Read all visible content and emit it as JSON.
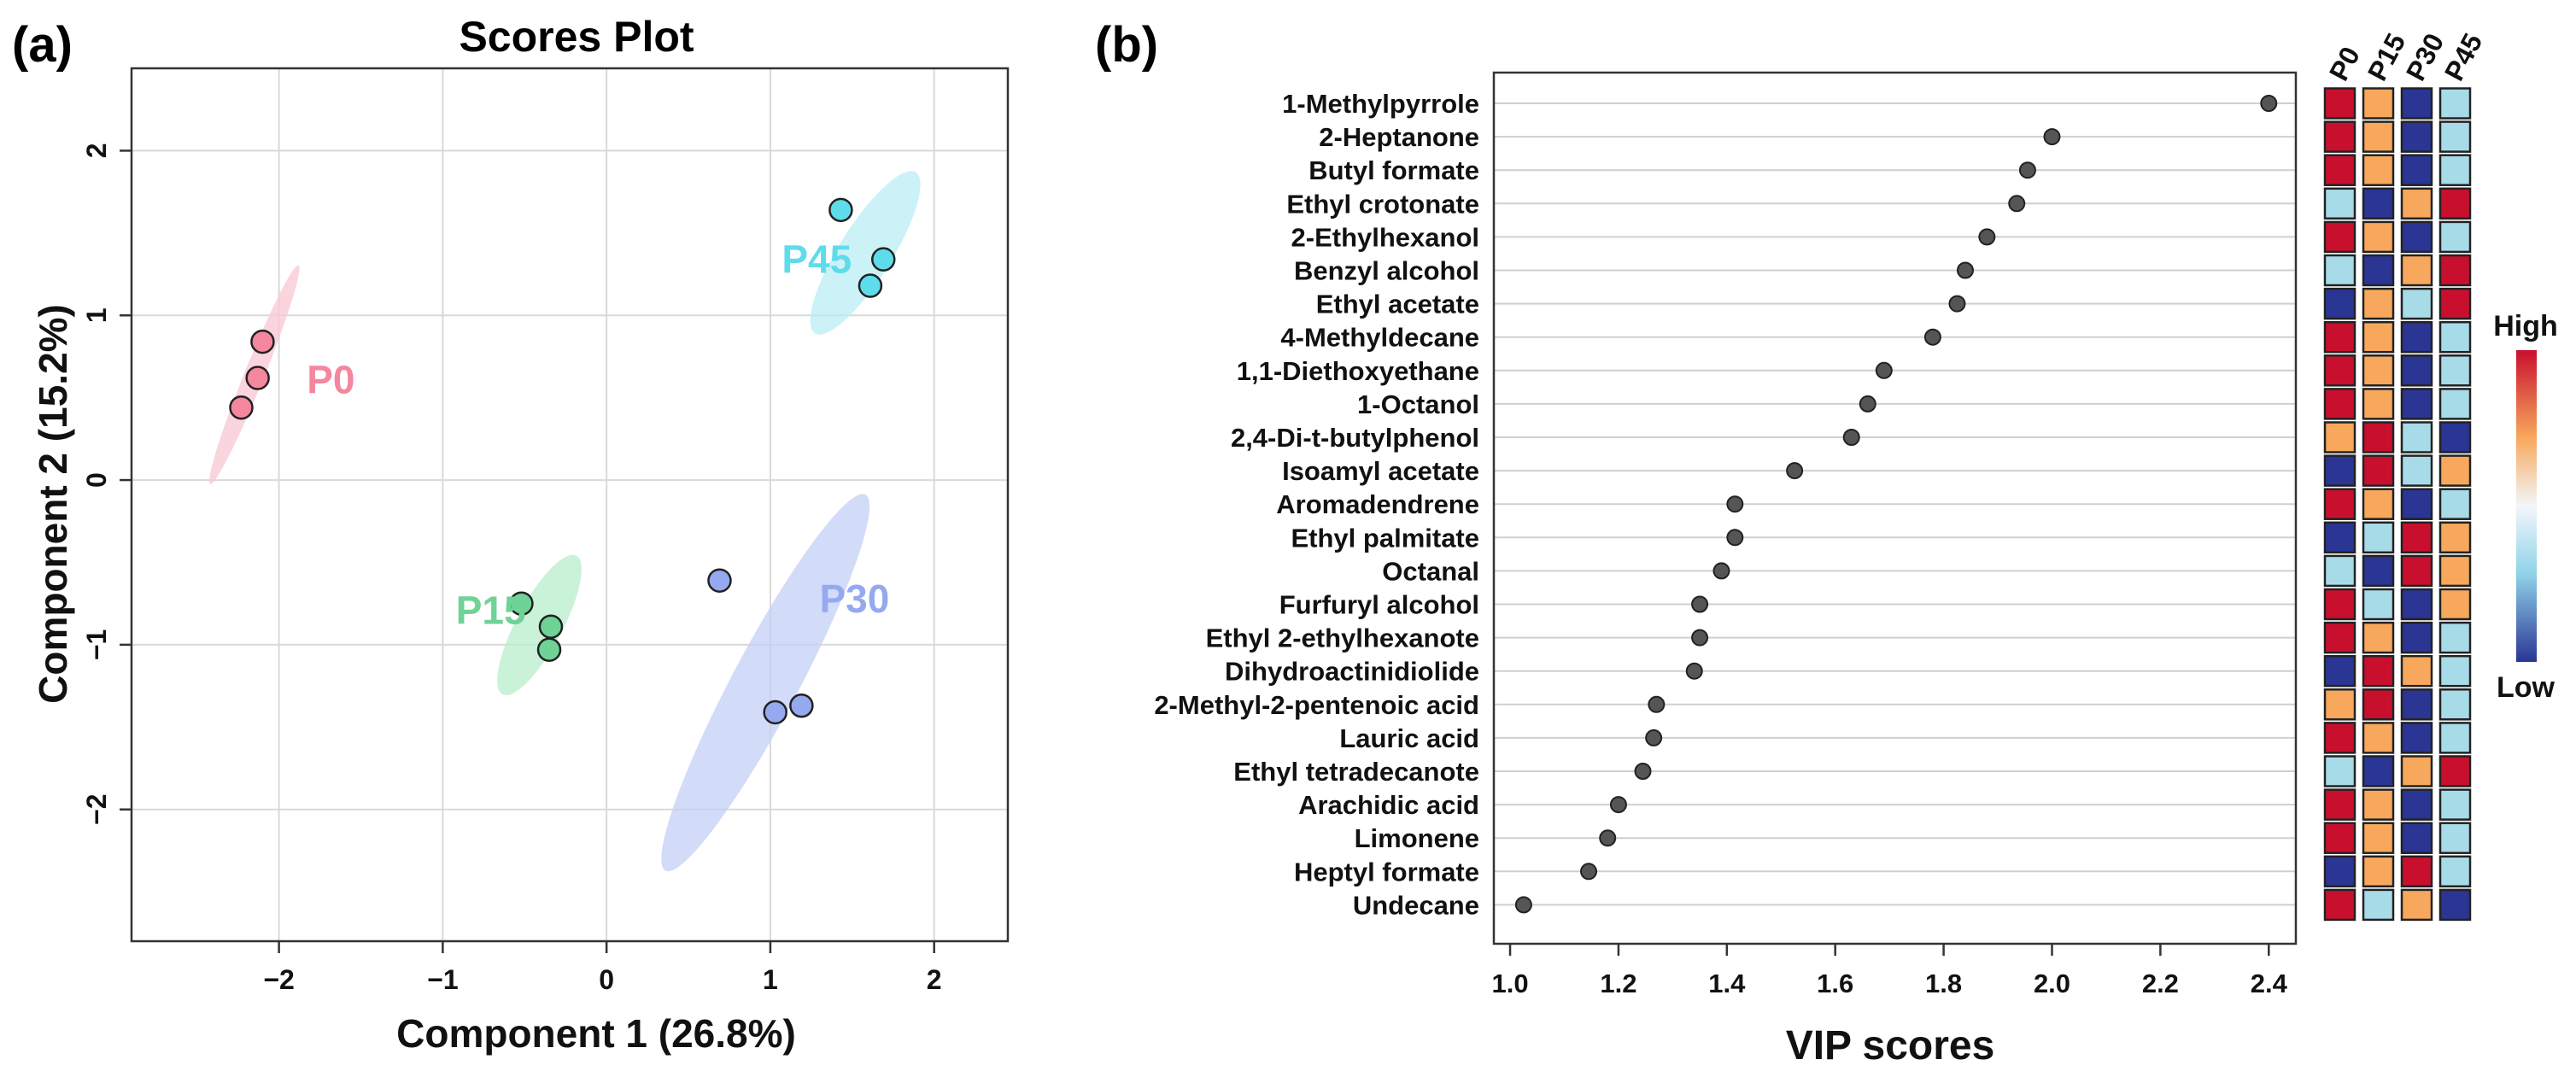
{
  "panel_labels": {
    "a": "(a)",
    "b": "(b)"
  },
  "chart_data": [
    {
      "type": "scatter",
      "title": "Scores Plot",
      "xlabel": "Component 1 (26.8%)",
      "ylabel": "Component 2 (15.2%)",
      "xlim": [
        -2.9,
        2.45
      ],
      "ylim": [
        -2.8,
        2.5
      ],
      "xticks": [
        -2,
        -1,
        0,
        1,
        2
      ],
      "xtick_labels": [
        "−2",
        "−1",
        "0",
        "1",
        "2"
      ],
      "yticks": [
        -2,
        -1,
        0,
        1,
        2
      ],
      "ytick_labels": [
        "−2",
        "−1",
        "0",
        "1",
        "2"
      ],
      "grid": true,
      "series": [
        {
          "name": "P0",
          "color": "#f4879e",
          "fill": "#f9c7d3",
          "points": [
            [
              -2.1,
              0.84
            ],
            [
              -2.13,
              0.62
            ],
            [
              -2.23,
              0.44
            ]
          ],
          "ellipse": {
            "cx": -2.15,
            "cy": 0.64,
            "rx": 0.72,
            "ry": 0.06,
            "angle": 68
          },
          "label_pos": [
            -1.83,
            0.61
          ]
        },
        {
          "name": "P15",
          "color": "#6fd396",
          "fill": "#b8edcc",
          "points": [
            [
              -0.52,
              -0.75
            ],
            [
              -0.34,
              -0.89
            ],
            [
              -0.35,
              -1.03
            ]
          ],
          "ellipse": {
            "cx": -0.41,
            "cy": -0.88,
            "rx": 0.48,
            "ry": 0.14,
            "angle": 62
          },
          "label_pos": [
            -0.92,
            -0.79
          ]
        },
        {
          "name": "P30",
          "color": "#95aaee",
          "fill": "#c3cff5",
          "points": [
            [
              0.69,
              -0.61
            ],
            [
              1.03,
              -1.41
            ],
            [
              1.19,
              -1.37
            ]
          ],
          "ellipse": {
            "cx": 0.97,
            "cy": -1.23,
            "rx": 1.3,
            "ry": 0.2,
            "angle": 62
          },
          "label_pos": [
            1.3,
            -0.72
          ]
        },
        {
          "name": "P45",
          "color": "#5fdcea",
          "fill": "#b9eef4",
          "points": [
            [
              1.43,
              1.64
            ],
            [
              1.69,
              1.34
            ],
            [
              1.61,
              1.18
            ]
          ],
          "ellipse": {
            "cx": 1.58,
            "cy": 1.38,
            "rx": 0.58,
            "ry": 0.16,
            "angle": 58
          },
          "label_pos": [
            1.07,
            1.34
          ]
        }
      ]
    },
    {
      "type": "scatter",
      "xlabel": "VIP scores",
      "xlim": [
        0.97,
        2.45
      ],
      "xticks": [
        1.0,
        1.2,
        1.4,
        1.6,
        1.8,
        2.0,
        2.2,
        2.4
      ],
      "xtick_labels": [
        "1.0",
        "1.2",
        "1.4",
        "1.6",
        "1.8",
        "2.0",
        "2.2",
        "2.4"
      ],
      "categories": [
        "1-Methylpyrrole",
        "2-Heptanone",
        "Butyl formate",
        "Ethyl crotonate",
        "2-Ethylhexanol",
        "Benzyl alcohol",
        "Ethyl acetate",
        "4-Methyldecane",
        "1,1-Diethoxyethane",
        "1-Octanol",
        "2,4-Di-t-butylphenol",
        "Isoamyl acetate",
        "Aromadendrene",
        "Ethyl palmitate",
        "Octanal",
        "Furfuryl alcohol",
        "Ethyl 2-ethylhexanote",
        "Dihydroactinidiolide",
        "2-Methyl-2-pentenoic acid",
        "Lauric acid",
        "Ethyl tetradecanote",
        "Arachidic acid",
        "Limonene",
        "Heptyl formate",
        "Undecane"
      ],
      "values": [
        2.4,
        2.0,
        1.955,
        1.935,
        1.88,
        1.84,
        1.825,
        1.78,
        1.69,
        1.66,
        1.63,
        1.525,
        1.415,
        1.415,
        1.39,
        1.35,
        1.35,
        1.34,
        1.27,
        1.265,
        1.245,
        1.2,
        1.18,
        1.145,
        1.025
      ]
    },
    {
      "type": "heatmap",
      "columns": [
        "P0",
        "P15",
        "P30",
        "P45"
      ],
      "colorbar": {
        "high": "High",
        "low": "Low"
      },
      "palette": {
        "red": "#c8102e",
        "orange": "#f7a85c",
        "lightblue": "#a8dbe8",
        "navy": "#2a3594"
      },
      "rows": [
        [
          "red",
          "orange",
          "navy",
          "lightblue"
        ],
        [
          "red",
          "orange",
          "navy",
          "lightblue"
        ],
        [
          "red",
          "orange",
          "navy",
          "lightblue"
        ],
        [
          "lightblue",
          "navy",
          "orange",
          "red"
        ],
        [
          "red",
          "orange",
          "navy",
          "lightblue"
        ],
        [
          "lightblue",
          "navy",
          "orange",
          "red"
        ],
        [
          "navy",
          "orange",
          "lightblue",
          "red"
        ],
        [
          "red",
          "orange",
          "navy",
          "lightblue"
        ],
        [
          "red",
          "orange",
          "navy",
          "lightblue"
        ],
        [
          "red",
          "orange",
          "navy",
          "lightblue"
        ],
        [
          "orange",
          "red",
          "lightblue",
          "navy"
        ],
        [
          "navy",
          "red",
          "lightblue",
          "orange"
        ],
        [
          "red",
          "orange",
          "navy",
          "lightblue"
        ],
        [
          "navy",
          "lightblue",
          "red",
          "orange"
        ],
        [
          "lightblue",
          "navy",
          "red",
          "orange"
        ],
        [
          "red",
          "lightblue",
          "navy",
          "orange"
        ],
        [
          "red",
          "orange",
          "navy",
          "lightblue"
        ],
        [
          "navy",
          "red",
          "orange",
          "lightblue"
        ],
        [
          "orange",
          "red",
          "navy",
          "lightblue"
        ],
        [
          "red",
          "orange",
          "navy",
          "lightblue"
        ],
        [
          "lightblue",
          "navy",
          "orange",
          "red"
        ],
        [
          "red",
          "orange",
          "navy",
          "lightblue"
        ],
        [
          "red",
          "orange",
          "navy",
          "lightblue"
        ],
        [
          "navy",
          "orange",
          "red",
          "lightblue"
        ],
        [
          "red",
          "lightblue",
          "orange",
          "navy"
        ]
      ]
    }
  ]
}
